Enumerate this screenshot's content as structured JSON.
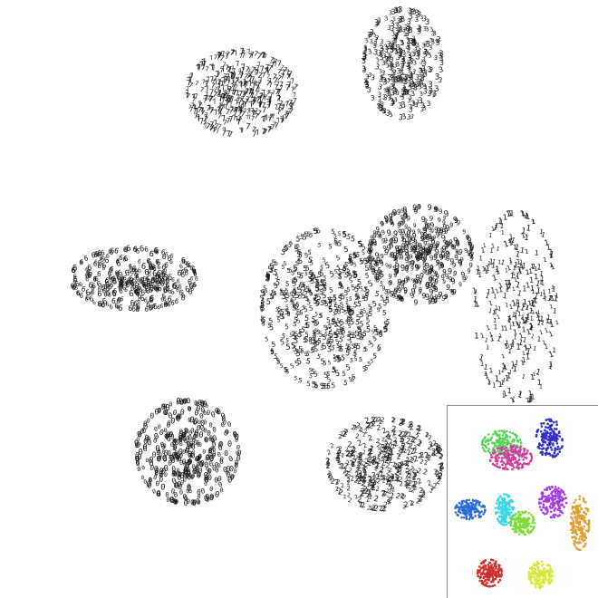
{
  "chart_data": [
    {
      "type": "scatter",
      "title": "",
      "xlabel": "",
      "ylabel": "",
      "axes_visible": false,
      "grid": false,
      "marker_style": "digit glyphs (handwritten-digit images) in black",
      "series": [
        {
          "cluster": 1,
          "glyph": "7",
          "center": [
            0.4,
            0.84
          ],
          "spread": [
            0.09,
            0.07
          ],
          "count": 420
        },
        {
          "cluster": 2,
          "glyph": "3",
          "center": [
            0.67,
            0.89
          ],
          "spread": [
            0.065,
            0.09
          ],
          "count": 340
        },
        {
          "cluster": 3,
          "glyph": "6",
          "center": [
            0.22,
            0.53
          ],
          "spread": [
            0.105,
            0.05
          ],
          "count": 320
        },
        {
          "cluster": 4,
          "glyph": "5",
          "center": [
            0.54,
            0.48
          ],
          "spread": [
            0.105,
            0.13
          ],
          "count": 520
        },
        {
          "cluster": 5,
          "glyph": "9",
          "center": [
            0.7,
            0.57
          ],
          "spread": [
            0.085,
            0.08
          ],
          "count": 380
        },
        {
          "cluster": 6,
          "glyph": "1",
          "center": [
            0.86,
            0.48
          ],
          "spread": [
            0.07,
            0.16
          ],
          "count": 300
        },
        {
          "cluster": 7,
          "glyph": "0",
          "center": [
            0.31,
            0.24
          ],
          "spread": [
            0.085,
            0.085
          ],
          "count": 380
        },
        {
          "cluster": 8,
          "glyph": "2",
          "center": [
            0.64,
            0.22
          ],
          "spread": [
            0.095,
            0.075
          ],
          "count": 400
        }
      ]
    },
    {
      "type": "scatter",
      "title": "",
      "legend": false,
      "axes_visible": false,
      "marker_style": "small colored points",
      "series": [
        {
          "cluster": 1,
          "color": "#55d655",
          "center": [
            0.36,
            0.8
          ],
          "spread": [
            0.13,
            0.07
          ],
          "count": 180
        },
        {
          "cluster": 2,
          "color": "#2e2ec8",
          "center": [
            0.68,
            0.83
          ],
          "spread": [
            0.09,
            0.1
          ],
          "count": 160
        },
        {
          "cluster": 3,
          "color": "#d23ca0",
          "center": [
            0.42,
            0.73
          ],
          "spread": [
            0.14,
            0.06
          ],
          "count": 180
        },
        {
          "cluster": 4,
          "color": "#2f6ad6",
          "center": [
            0.15,
            0.46
          ],
          "spread": [
            0.1,
            0.05
          ],
          "count": 160
        },
        {
          "cluster": 5,
          "color": "#3ad8e6",
          "center": [
            0.38,
            0.46
          ],
          "spread": [
            0.06,
            0.08
          ],
          "count": 150
        },
        {
          "cluster": 6,
          "color": "#a43ce0",
          "center": [
            0.7,
            0.5
          ],
          "spread": [
            0.09,
            0.08
          ],
          "count": 160
        },
        {
          "cluster": 7,
          "color": "#e0a030",
          "center": [
            0.88,
            0.39
          ],
          "spread": [
            0.06,
            0.14
          ],
          "count": 170
        },
        {
          "cluster": 8,
          "color": "#7edc3a",
          "center": [
            0.5,
            0.39
          ],
          "spread": [
            0.08,
            0.06
          ],
          "count": 150
        },
        {
          "cluster": 9,
          "color": "#d03030",
          "center": [
            0.28,
            0.13
          ],
          "spread": [
            0.08,
            0.07
          ],
          "count": 170
        },
        {
          "cluster": 10,
          "color": "#d8e83c",
          "center": [
            0.62,
            0.12
          ],
          "spread": [
            0.08,
            0.07
          ],
          "count": 170
        }
      ]
    }
  ]
}
